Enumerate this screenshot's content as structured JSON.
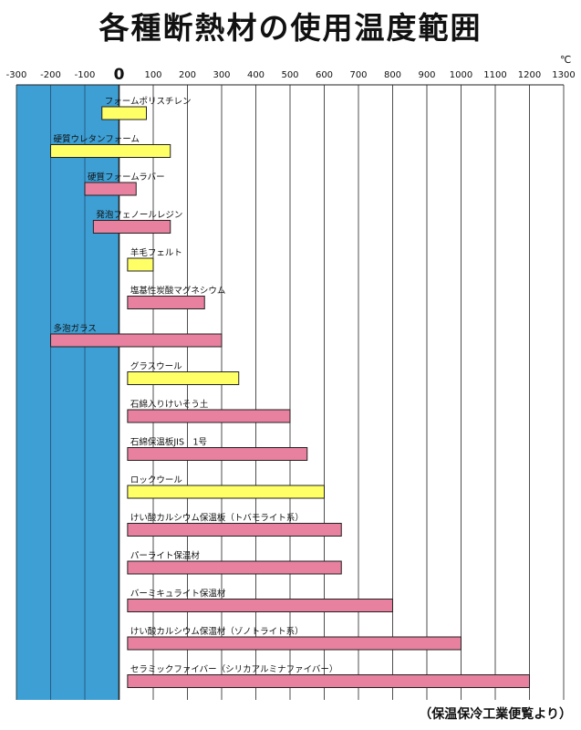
{
  "title": "各種断熱材の使用温度範囲",
  "unit": "℃",
  "source": "（保温保冷工業便覧より）",
  "chart_data": {
    "type": "bar",
    "orientation": "horizontal",
    "title": "各種断熱材の使用温度範囲",
    "xlabel": "℃",
    "xlim": [
      -300,
      1300
    ],
    "xticks": [
      -300,
      -200,
      -100,
      0,
      100,
      200,
      300,
      400,
      500,
      600,
      700,
      800,
      900,
      1000,
      1100,
      1200,
      1300
    ],
    "shaded_region": {
      "from": -300,
      "to": 0,
      "color": "#3d9fd4"
    },
    "grid": true,
    "colors": {
      "yellow": "#ffff66",
      "pink": "#e8809f"
    },
    "series": [
      {
        "name": "フォームポリスチレン",
        "min": -50,
        "max": 80,
        "color": "yellow"
      },
      {
        "name": "硬質ウレタンフォーム",
        "min": -200,
        "max": 150,
        "color": "yellow"
      },
      {
        "name": "硬質フォームラバー",
        "min": -100,
        "max": 50,
        "color": "pink"
      },
      {
        "name": "発泡フェノールレジン",
        "min": -75,
        "max": 150,
        "color": "pink"
      },
      {
        "name": "羊毛フェルト",
        "min": 25,
        "max": 100,
        "color": "yellow"
      },
      {
        "name": "塩基性炭酸マグネシウム",
        "min": 25,
        "max": 250,
        "color": "pink"
      },
      {
        "name": "多泡ガラス",
        "min": -200,
        "max": 300,
        "color": "pink"
      },
      {
        "name": "グラスウール",
        "min": 25,
        "max": 350,
        "color": "yellow"
      },
      {
        "name": "石綿入りけいそう土",
        "min": 25,
        "max": 500,
        "color": "pink"
      },
      {
        "name": "石綿保温板JIS　1号",
        "min": 25,
        "max": 550,
        "color": "pink"
      },
      {
        "name": "ロックウール",
        "min": 25,
        "max": 600,
        "color": "yellow"
      },
      {
        "name": "けい酸カルシウム保温板（トバモライト系）",
        "min": 25,
        "max": 650,
        "color": "pink"
      },
      {
        "name": "パーライト保温材",
        "min": 25,
        "max": 650,
        "color": "pink"
      },
      {
        "name": "バーミキュライト保温材",
        "min": 25,
        "max": 800,
        "color": "pink"
      },
      {
        "name": "けい酸カルシウム保温材（ゾノトライト系）",
        "min": 25,
        "max": 1000,
        "color": "pink"
      },
      {
        "name": "セラミックファイバー（シリカアルミナファイバー）",
        "min": 25,
        "max": 1200,
        "color": "pink"
      }
    ]
  }
}
